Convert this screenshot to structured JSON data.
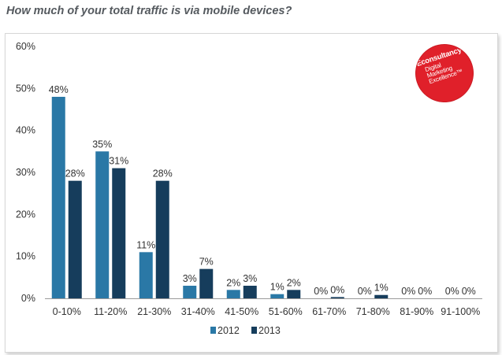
{
  "title": "How much of your total traffic is via mobile devices?",
  "logo": {
    "brand": "Econsultancy",
    "tagline": [
      "Digital",
      "Marketing",
      "Excellence™"
    ]
  },
  "colors": {
    "series_2012": "#2a78a6",
    "series_2013": "#163d5c",
    "axis_text": "#333333",
    "axis_line": "#9a9a9a",
    "logo_red": "#e0202a"
  },
  "chart_data": {
    "type": "bar",
    "title": "How much of your total traffic is via mobile devices?",
    "categories": [
      "0-10%",
      "11-20%",
      "21-30%",
      "31-40%",
      "41-50%",
      "51-60%",
      "61-70%",
      "71-80%",
      "81-90%",
      "91-100%"
    ],
    "series": [
      {
        "name": "2012",
        "values": [
          48,
          35,
          11,
          3,
          2,
          1,
          0,
          0,
          0,
          0
        ],
        "labels": [
          "48%",
          "35%",
          "11%",
          "3%",
          "2%",
          "1%",
          "0%",
          "0%",
          "0%",
          "0%"
        ]
      },
      {
        "name": "2013",
        "values": [
          28,
          31,
          28,
          7,
          3,
          2,
          0.3,
          0.8,
          0,
          0
        ],
        "labels": [
          "28%",
          "31%",
          "28%",
          "7%",
          "3%",
          "2%",
          "0%",
          "1%",
          "0%",
          "0%"
        ]
      }
    ],
    "yticks": [
      "0%",
      "10%",
      "20%",
      "30%",
      "40%",
      "50%",
      "60%"
    ],
    "ylim": [
      0,
      60
    ],
    "xlabel": "",
    "ylabel": "",
    "grid": false,
    "legend": "bottom-center"
  }
}
